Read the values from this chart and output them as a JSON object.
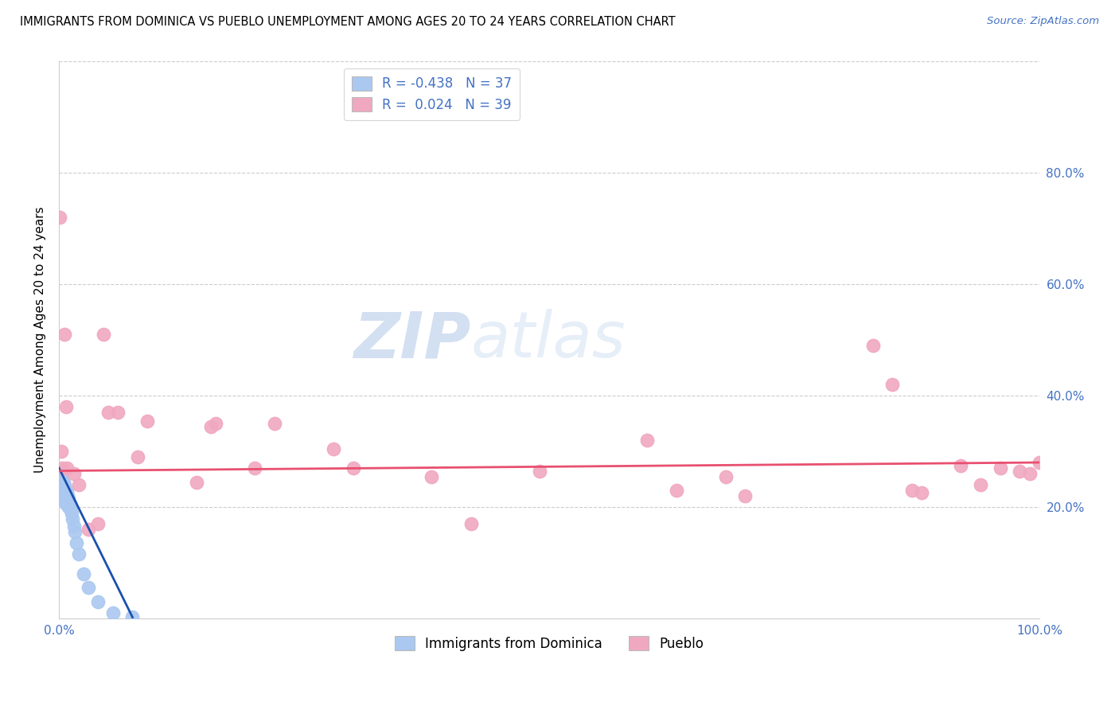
{
  "title": "IMMIGRANTS FROM DOMINICA VS PUEBLO UNEMPLOYMENT AMONG AGES 20 TO 24 YEARS CORRELATION CHART",
  "source": "Source: ZipAtlas.com",
  "ylabel": "Unemployment Among Ages 20 to 24 years",
  "xlim": [
    0,
    1.0
  ],
  "ylim": [
    0,
    1.0
  ],
  "blue_color": "#aac8f0",
  "pink_color": "#f0a8c0",
  "blue_line_color": "#1a50b0",
  "pink_line_color": "#e85070",
  "legend_blue_r": "-0.438",
  "legend_blue_n": "37",
  "legend_pink_r": "0.024",
  "legend_pink_n": "39",
  "watermark_zip": "ZIP",
  "watermark_atlas": "atlas",
  "blue_scatter_x": [
    0.001,
    0.001,
    0.002,
    0.002,
    0.003,
    0.003,
    0.003,
    0.004,
    0.004,
    0.005,
    0.005,
    0.005,
    0.006,
    0.006,
    0.006,
    0.007,
    0.007,
    0.007,
    0.008,
    0.008,
    0.009,
    0.009,
    0.01,
    0.01,
    0.011,
    0.012,
    0.013,
    0.014,
    0.015,
    0.016,
    0.018,
    0.02,
    0.025,
    0.03,
    0.04,
    0.055,
    0.075
  ],
  "blue_scatter_y": [
    0.265,
    0.24,
    0.255,
    0.235,
    0.248,
    0.23,
    0.22,
    0.242,
    0.225,
    0.245,
    0.228,
    0.215,
    0.238,
    0.222,
    0.21,
    0.232,
    0.218,
    0.205,
    0.228,
    0.212,
    0.22,
    0.208,
    0.215,
    0.2,
    0.205,
    0.195,
    0.188,
    0.178,
    0.165,
    0.155,
    0.135,
    0.115,
    0.08,
    0.055,
    0.03,
    0.01,
    0.002
  ],
  "pink_scatter_x": [
    0.001,
    0.002,
    0.003,
    0.006,
    0.007,
    0.008,
    0.015,
    0.02,
    0.03,
    0.04,
    0.045,
    0.05,
    0.06,
    0.08,
    0.09,
    0.14,
    0.155,
    0.16,
    0.2,
    0.22,
    0.28,
    0.3,
    0.38,
    0.42,
    0.49,
    0.6,
    0.63,
    0.68,
    0.7,
    0.83,
    0.85,
    0.87,
    0.88,
    0.92,
    0.94,
    0.96,
    0.98,
    0.99,
    1.0
  ],
  "pink_scatter_y": [
    0.72,
    0.3,
    0.27,
    0.51,
    0.38,
    0.27,
    0.26,
    0.24,
    0.16,
    0.17,
    0.51,
    0.37,
    0.37,
    0.29,
    0.355,
    0.245,
    0.345,
    0.35,
    0.27,
    0.35,
    0.305,
    0.27,
    0.255,
    0.17,
    0.265,
    0.32,
    0.23,
    0.255,
    0.22,
    0.49,
    0.42,
    0.23,
    0.225,
    0.275,
    0.24,
    0.27,
    0.265,
    0.26,
    0.28
  ],
  "blue_trendline_x": [
    0.0,
    0.075
  ],
  "blue_trendline_y": [
    0.27,
    0.002
  ],
  "pink_trendline_x": [
    0.0,
    1.0
  ],
  "pink_trendline_y": [
    0.265,
    0.28
  ]
}
